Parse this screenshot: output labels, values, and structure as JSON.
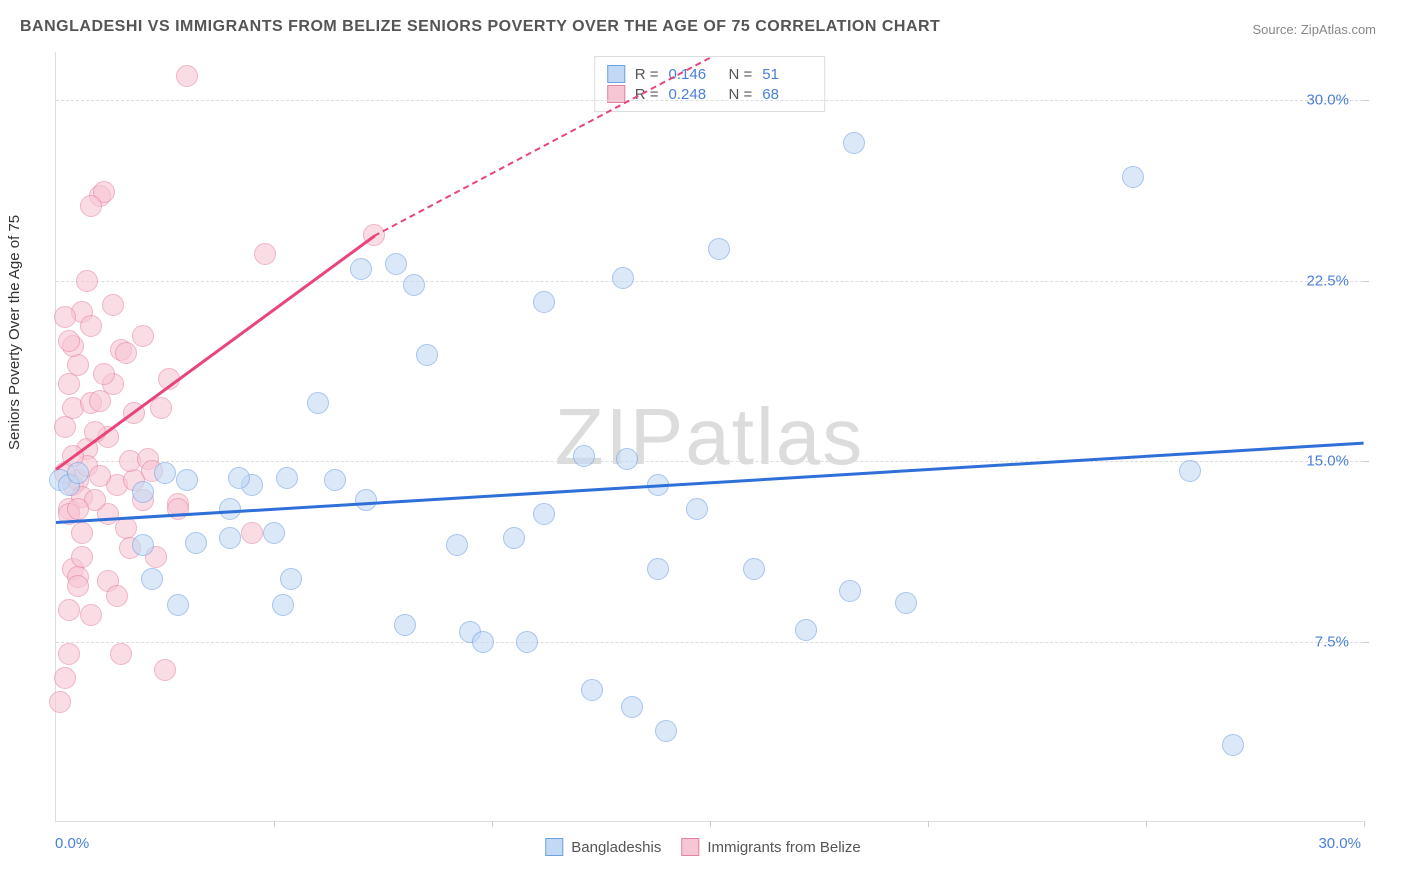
{
  "title": "BANGLADESHI VS IMMIGRANTS FROM BELIZE SENIORS POVERTY OVER THE AGE OF 75 CORRELATION CHART",
  "source": "Source: ZipAtlas.com",
  "ylabel": "Seniors Poverty Over the Age of 75",
  "watermark_bold": "ZIP",
  "watermark_thin": "atlas",
  "chart": {
    "type": "scatter",
    "background_color": "#ffffff",
    "grid_color": "#dddddd",
    "grid_dash": "4,4",
    "xlim": [
      0,
      30
    ],
    "ylim": [
      0,
      32
    ],
    "y_ticks": [
      {
        "v": 7.5,
        "label": "7.5%"
      },
      {
        "v": 15.0,
        "label": "15.0%"
      },
      {
        "v": 22.5,
        "label": "22.5%"
      },
      {
        "v": 30.0,
        "label": "30.0%"
      }
    ],
    "x_tick_marks": [
      5,
      10,
      15,
      20,
      25,
      30
    ],
    "x_min_label": "0.0%",
    "x_max_label": "30.0%",
    "marker_radius": 11,
    "marker_stroke_width": 1.5,
    "series": [
      {
        "name": "Bangladeshis",
        "fill": "#c2d9f5",
        "stroke": "#6fa0e0",
        "fill_opacity": 0.6,
        "trend": {
          "x1": 0,
          "y1": 12.5,
          "x2": 30,
          "y2": 15.8,
          "color": "#2f6fd8",
          "width": 2.5
        },
        "R": "0.146",
        "N": "51",
        "points": [
          [
            0.1,
            14.2
          ],
          [
            0.3,
            14.0
          ],
          [
            0.5,
            14.5
          ],
          [
            2.5,
            14.5
          ],
          [
            2.2,
            10.1
          ],
          [
            2.0,
            11.5
          ],
          [
            2.8,
            9.0
          ],
          [
            3.2,
            11.6
          ],
          [
            4.0,
            11.8
          ],
          [
            4.5,
            14.0
          ],
          [
            4.2,
            14.3
          ],
          [
            3.0,
            14.2
          ],
          [
            5.0,
            12.0
          ],
          [
            5.2,
            9.0
          ],
          [
            5.3,
            14.3
          ],
          [
            5.4,
            10.1
          ],
          [
            6.0,
            17.4
          ],
          [
            6.4,
            14.2
          ],
          [
            7.0,
            23.0
          ],
          [
            7.1,
            13.4
          ],
          [
            7.8,
            23.2
          ],
          [
            8.0,
            8.2
          ],
          [
            8.2,
            22.3
          ],
          [
            8.5,
            19.4
          ],
          [
            9.2,
            11.5
          ],
          [
            9.5,
            7.9
          ],
          [
            9.8,
            7.5
          ],
          [
            10.5,
            11.8
          ],
          [
            11.2,
            21.6
          ],
          [
            11.2,
            12.8
          ],
          [
            10.8,
            7.5
          ],
          [
            12.1,
            15.2
          ],
          [
            12.3,
            5.5
          ],
          [
            13.0,
            22.6
          ],
          [
            13.1,
            15.1
          ],
          [
            13.2,
            4.8
          ],
          [
            13.8,
            14.0
          ],
          [
            13.8,
            10.5
          ],
          [
            14.7,
            13.0
          ],
          [
            14.0,
            3.8
          ],
          [
            15.2,
            23.8
          ],
          [
            16.0,
            10.5
          ],
          [
            17.2,
            8.0
          ],
          [
            18.3,
            28.2
          ],
          [
            18.2,
            9.6
          ],
          [
            19.5,
            9.1
          ],
          [
            24.7,
            26.8
          ],
          [
            26.0,
            14.6
          ],
          [
            27.0,
            3.2
          ],
          [
            2.0,
            13.7
          ],
          [
            4.0,
            13.0
          ]
        ]
      },
      {
        "name": "Immigrants from Belize",
        "fill": "#f7c6d4",
        "stroke": "#e583a5",
        "fill_opacity": 0.6,
        "trend": {
          "x1": 0,
          "y1": 14.7,
          "x2": 7.3,
          "y2": 24.4,
          "color": "#e8457c",
          "width": 2.5,
          "extend_to_x": 15.0,
          "extend_to_y": 31.8
        },
        "R": "0.248",
        "N": "68",
        "points": [
          [
            0.1,
            5.0
          ],
          [
            0.2,
            6.0
          ],
          [
            0.3,
            7.0
          ],
          [
            0.4,
            10.5
          ],
          [
            0.5,
            10.2
          ],
          [
            0.6,
            11.0
          ],
          [
            0.3,
            13.0
          ],
          [
            0.4,
            14.0
          ],
          [
            0.5,
            14.2
          ],
          [
            0.2,
            14.5
          ],
          [
            0.6,
            13.5
          ],
          [
            0.3,
            12.8
          ],
          [
            0.7,
            15.5
          ],
          [
            0.4,
            17.2
          ],
          [
            0.8,
            17.4
          ],
          [
            0.3,
            18.2
          ],
          [
            0.5,
            19.0
          ],
          [
            0.6,
            21.2
          ],
          [
            0.8,
            20.6
          ],
          [
            0.2,
            21.0
          ],
          [
            0.7,
            22.5
          ],
          [
            1.0,
            17.5
          ],
          [
            1.2,
            16.0
          ],
          [
            1.3,
            18.2
          ],
          [
            1.5,
            19.6
          ],
          [
            1.4,
            14.0
          ],
          [
            1.2,
            12.8
          ],
          [
            1.0,
            26.0
          ],
          [
            1.1,
            26.2
          ],
          [
            0.8,
            25.6
          ],
          [
            0.5,
            9.8
          ],
          [
            1.8,
            14.2
          ],
          [
            1.7,
            15.0
          ],
          [
            1.6,
            19.5
          ],
          [
            2.0,
            20.2
          ],
          [
            2.0,
            13.4
          ],
          [
            2.1,
            15.1
          ],
          [
            2.2,
            14.6
          ],
          [
            2.3,
            11.0
          ],
          [
            2.5,
            6.3
          ],
          [
            2.6,
            18.4
          ],
          [
            2.8,
            13.2
          ],
          [
            3.0,
            31.0
          ],
          [
            1.2,
            10.0
          ],
          [
            1.4,
            9.4
          ],
          [
            1.5,
            7.0
          ],
          [
            2.4,
            17.2
          ],
          [
            2.8,
            13.0
          ],
          [
            4.8,
            23.6
          ],
          [
            4.5,
            12.0
          ],
          [
            7.3,
            24.4
          ],
          [
            0.3,
            8.8
          ],
          [
            0.9,
            13.4
          ],
          [
            0.7,
            14.8
          ],
          [
            0.4,
            19.8
          ],
          [
            0.2,
            16.4
          ],
          [
            0.6,
            12.0
          ],
          [
            0.8,
            8.6
          ],
          [
            1.8,
            17.0
          ],
          [
            1.3,
            21.5
          ],
          [
            0.4,
            15.2
          ],
          [
            0.5,
            13.0
          ],
          [
            1.0,
            14.4
          ],
          [
            0.3,
            20.0
          ],
          [
            1.1,
            18.6
          ],
          [
            1.6,
            12.2
          ],
          [
            0.9,
            16.2
          ],
          [
            1.7,
            11.4
          ]
        ]
      }
    ]
  },
  "legend_top_cols": {
    "r_label": "R  =",
    "n_label": "N  ="
  },
  "colors": {
    "text_axis": "#4a7fd8",
    "text_title": "#555555"
  }
}
